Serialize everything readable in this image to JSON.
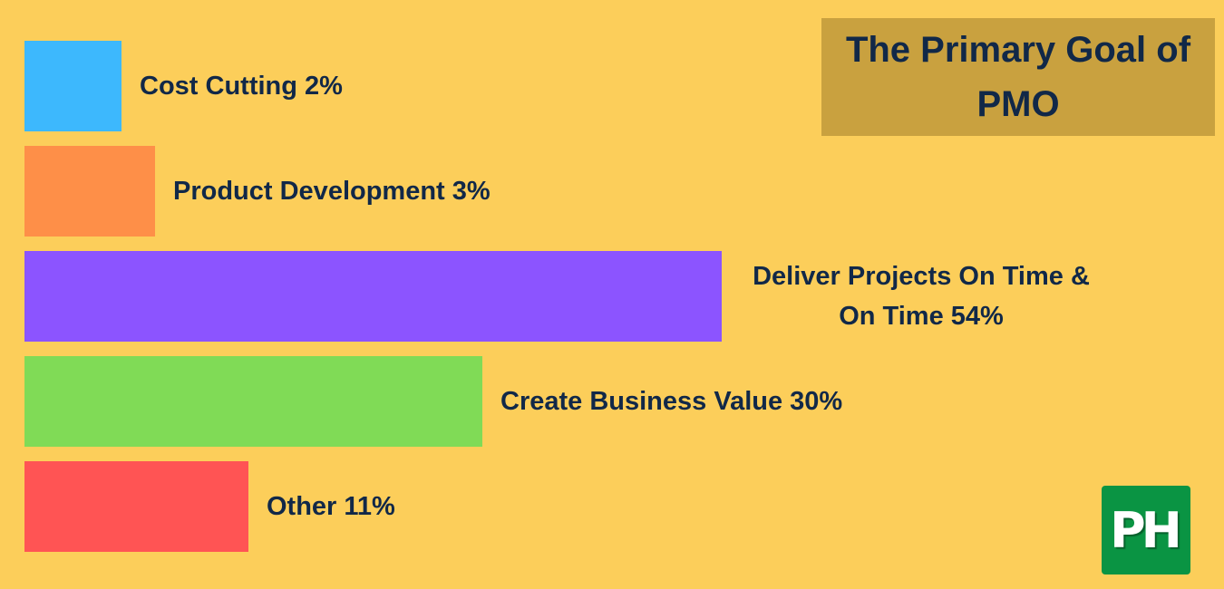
{
  "colors": {
    "background": "#fcce5a",
    "text": "#112848",
    "title_box": "#c9a13f",
    "logo_bg": "#0a9443"
  },
  "title": "The Primary Goal of PMO",
  "logo": "PH",
  "chart_data": {
    "type": "bar",
    "orientation": "horizontal",
    "title": "The Primary Goal of PMO",
    "unit": "%",
    "categories": [
      "Cost Cutting",
      "Product Development",
      "Deliver Projects On Time & On Time",
      "Create Business Value",
      "Other"
    ],
    "values": [
      2,
      3,
      54,
      30,
      11
    ],
    "labels": [
      "Cost Cutting 2%",
      "Product Development 3%",
      "Deliver Projects On Time & On Time 54%",
      "Create Business Value  30%",
      "Other 11%"
    ],
    "colors": [
      "#3db8fd",
      "#fe8f48",
      "#8c54ff",
      "#80db56",
      "#ff5454"
    ],
    "grid": false,
    "legend": "none"
  }
}
